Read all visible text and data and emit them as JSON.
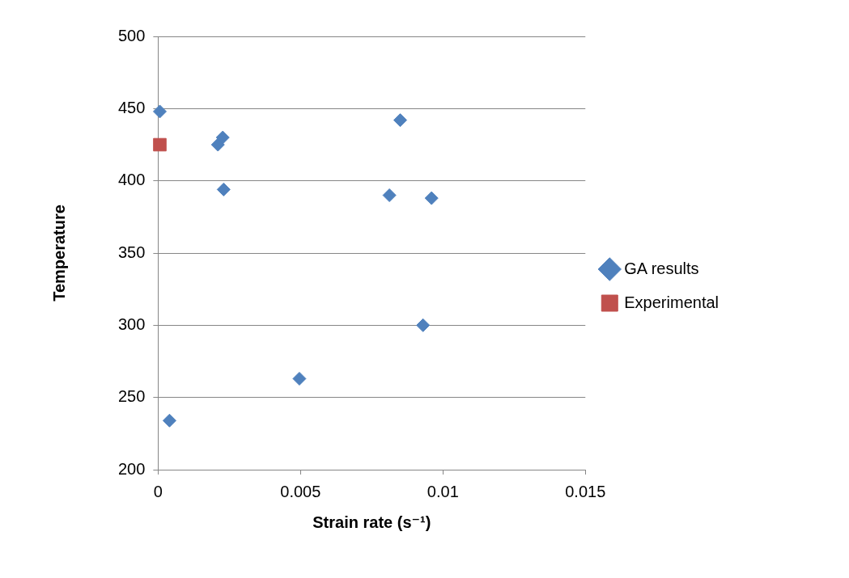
{
  "chart_data": {
    "type": "scatter",
    "xlabel": "Strain rate (s⁻¹)",
    "ylabel": "Temperature",
    "xlim": [
      0,
      0.015
    ],
    "xticks": [
      0,
      0.005,
      0.01,
      0.015
    ],
    "ylim": [
      200,
      500
    ],
    "yticks": [
      200,
      250,
      300,
      350,
      400,
      450,
      500
    ],
    "grid": "y",
    "legend": "right",
    "series": [
      {
        "name": "GA results",
        "color": "#4f81bd",
        "marker": "diamond",
        "x": [
          6e-05,
          0.0004,
          0.0021,
          0.00227,
          0.0023,
          0.00496,
          0.0085,
          0.00812,
          0.0096,
          0.0093
        ],
        "values": [
          448,
          234,
          425,
          430,
          394,
          263,
          442,
          390,
          388,
          300
        ]
      },
      {
        "name": "Experimental",
        "color": "#c0504d",
        "marker": "square",
        "x": [
          6e-05
        ],
        "values": [
          425
        ]
      }
    ]
  }
}
